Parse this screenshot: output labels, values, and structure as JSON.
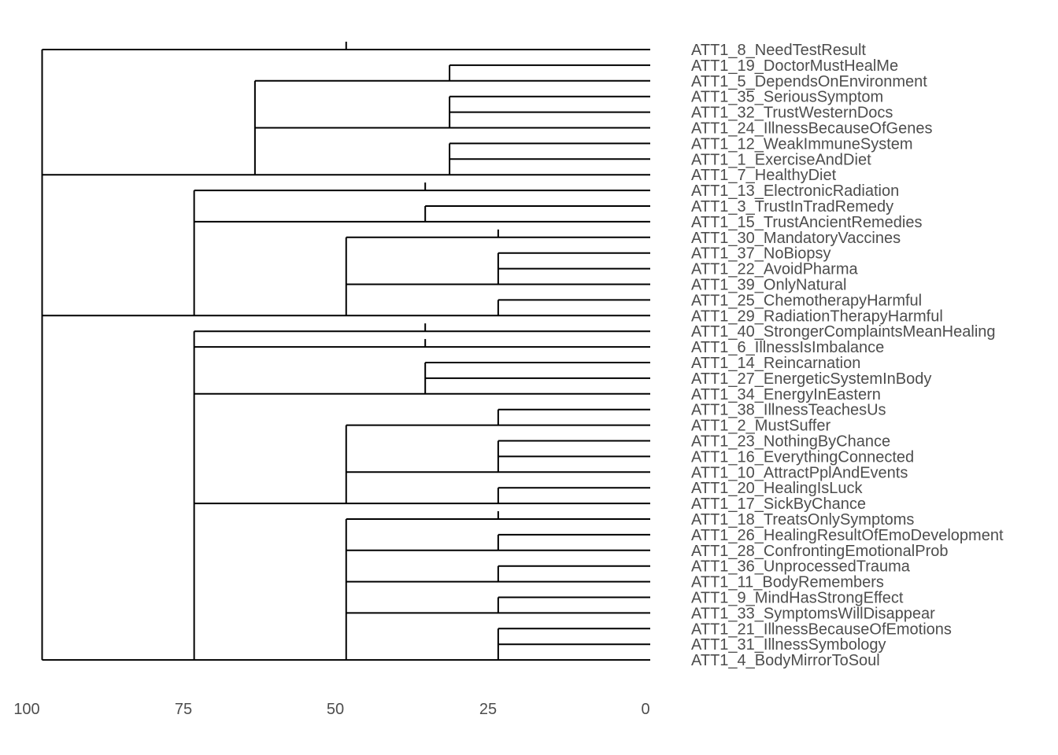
{
  "chart_data": {
    "type": "dendrogram",
    "orientation": "horizontal",
    "x_axis": {
      "reversed": true,
      "xlim": [
        100,
        0
      ],
      "ticks": [
        100,
        75,
        50,
        25,
        0
      ],
      "tick_labels": [
        "100",
        "75",
        "50",
        "25",
        "0"
      ]
    },
    "grid": false,
    "colors": {
      "line": "#000000",
      "text": "#4d4d4d"
    },
    "leaves": [
      "ATT1_8_NeedTestResult",
      "ATT1_19_DoctorMustHealMe",
      "ATT1_5_DependsOnEnvironment",
      "ATT1_35_SeriousSymptom",
      "ATT1_32_TrustWesternDocs",
      "ATT1_24_IllnessBecauseOfGenes",
      "ATT1_12_WeakImmuneSystem",
      "ATT1_1_ExerciseAndDiet",
      "ATT1_7_HealthyDiet",
      "ATT1_13_ElectronicRadiation",
      "ATT1_3_TrustInTradRemedy",
      "ATT1_15_TrustAncientRemedies",
      "ATT1_30_MandatoryVaccines",
      "ATT1_37_NoBiopsy",
      "ATT1_22_AvoidPharma",
      "ATT1_39_OnlyNatural",
      "ATT1_25_ChemotherapyHarmful",
      "ATT1_29_RadiationTherapyHarmful",
      "ATT1_40_StrongerComplaintsMeanHealing",
      "ATT1_6_IllnessIsImbalance",
      "ATT1_14_Reincarnation",
      "ATT1_27_EnergeticSystemInBody",
      "ATT1_34_EnergyInEastern",
      "ATT1_38_IllnessTeachesUs",
      "ATT1_2_MustSuffer",
      "ATT1_23_NothingByChance",
      "ATT1_16_EverythingConnected",
      "ATT1_10_AttractPplAndEvents",
      "ATT1_20_HealingIsLuck",
      "ATT1_17_SickByChance",
      "ATT1_18_TreatsOnlySymptoms",
      "ATT1_26_HealingResultOfEmoDevelopment",
      "ATT1_28_ConfrontingEmotionalProb",
      "ATT1_36_UnprocessedTrauma",
      "ATT1_11_BodyRemembers",
      "ATT1_9_MindHasStrongEffect",
      "ATT1_33_SymptomsWillDisappear",
      "ATT1_21_IllnessBecauseOfEmotions",
      "ATT1_31_IllnessSymbology",
      "ATT1_4_BodyMirrorToSoul"
    ],
    "merges": [
      {
        "height": 100,
        "children": [
          0,
          8,
          17,
          39
        ]
      },
      {
        "height": 65,
        "children": [
          2,
          5,
          8
        ]
      },
      {
        "height": 33,
        "children": [
          1,
          2
        ]
      },
      {
        "height": 33,
        "children": [
          3,
          4,
          5
        ]
      },
      {
        "height": 33,
        "children": [
          6,
          7,
          8
        ]
      },
      {
        "height": 75,
        "children": [
          9,
          11,
          17
        ]
      },
      {
        "height": 37,
        "children": [
          10,
          11
        ]
      },
      {
        "height": 50,
        "children": [
          12,
          15,
          17
        ]
      },
      {
        "height": 25,
        "children": [
          13,
          14,
          15
        ]
      },
      {
        "height": 25,
        "children": [
          16,
          17
        ]
      },
      {
        "height": 75,
        "children": [
          18,
          19,
          22,
          29,
          39
        ]
      },
      {
        "height": 37,
        "children": [
          20,
          21,
          22
        ]
      },
      {
        "height": 50,
        "children": [
          24,
          27,
          29
        ]
      },
      {
        "height": 25,
        "children": [
          23,
          24
        ]
      },
      {
        "height": 25,
        "children": [
          25,
          26,
          27
        ]
      },
      {
        "height": 25,
        "children": [
          28,
          29
        ]
      },
      {
        "height": 50,
        "children": [
          30,
          32,
          34,
          36,
          39
        ]
      },
      {
        "height": 25,
        "children": [
          31,
          32
        ]
      },
      {
        "height": 25,
        "children": [
          33,
          34
        ]
      },
      {
        "height": 25,
        "children": [
          35,
          36
        ]
      },
      {
        "height": 25,
        "children": [
          37,
          38,
          39
        ]
      }
    ],
    "annotation_ticks": [
      {
        "height": 50,
        "at_leaf": 0
      },
      {
        "height": 33,
        "at_leaf": 5
      },
      {
        "height": 37,
        "at_leaf": 9
      },
      {
        "height": 25,
        "at_leaf": 12
      },
      {
        "height": 37,
        "at_leaf": 18
      },
      {
        "height": 37,
        "at_leaf": 19
      },
      {
        "height": 25,
        "at_leaf": 30
      }
    ]
  }
}
